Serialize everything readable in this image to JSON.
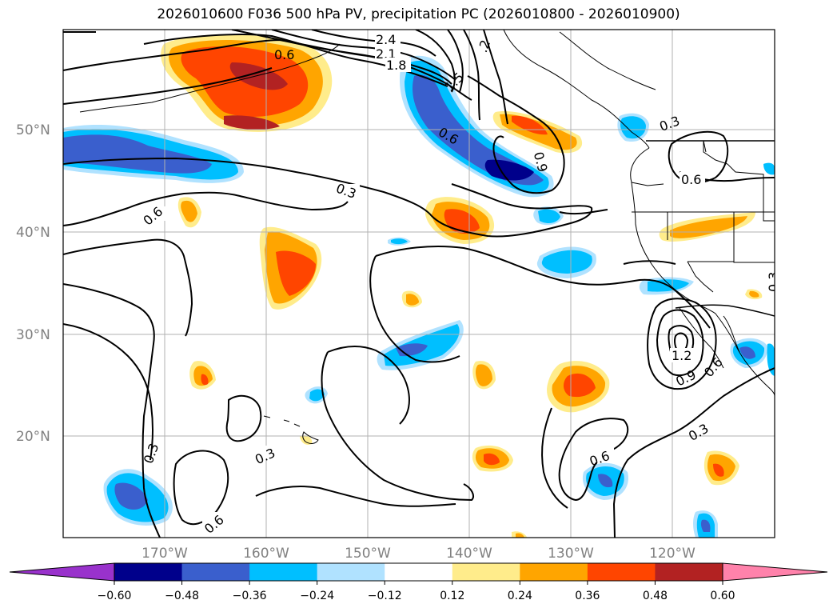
{
  "title": "2026010600 F036 500 hPa PV, precipitation PC (2026010800 - 2026010900)",
  "lat_labels": [
    "50°N",
    "40°N",
    "30°N",
    "20°N"
  ],
  "lon_labels": [
    "170°W",
    "160°W",
    "150°W",
    "140°W",
    "130°W",
    "120°W"
  ],
  "contour_labels": [
    "2.4",
    "2.1",
    "1.8",
    "1.5",
    "1.2",
    "0.9",
    "0.6",
    "0.3"
  ],
  "colorbar": {
    "ticks": [
      "−0.60",
      "−0.48",
      "−0.36",
      "−0.24",
      "−0.12",
      "0.12",
      "0.24",
      "0.36",
      "0.48",
      "0.60"
    ],
    "colors": [
      "#9932cc",
      "#00008b",
      "#3a5fcd",
      "#00bfff",
      "#b0e2ff",
      "#ffffff",
      "#ffec8b",
      "#ffa500",
      "#ff4500",
      "#b22222",
      "#ff82ab"
    ]
  },
  "colors": {
    "grid": "#b0b0b0",
    "coast": "#000000",
    "contour": "#000000",
    "axis_label": "#808080"
  }
}
